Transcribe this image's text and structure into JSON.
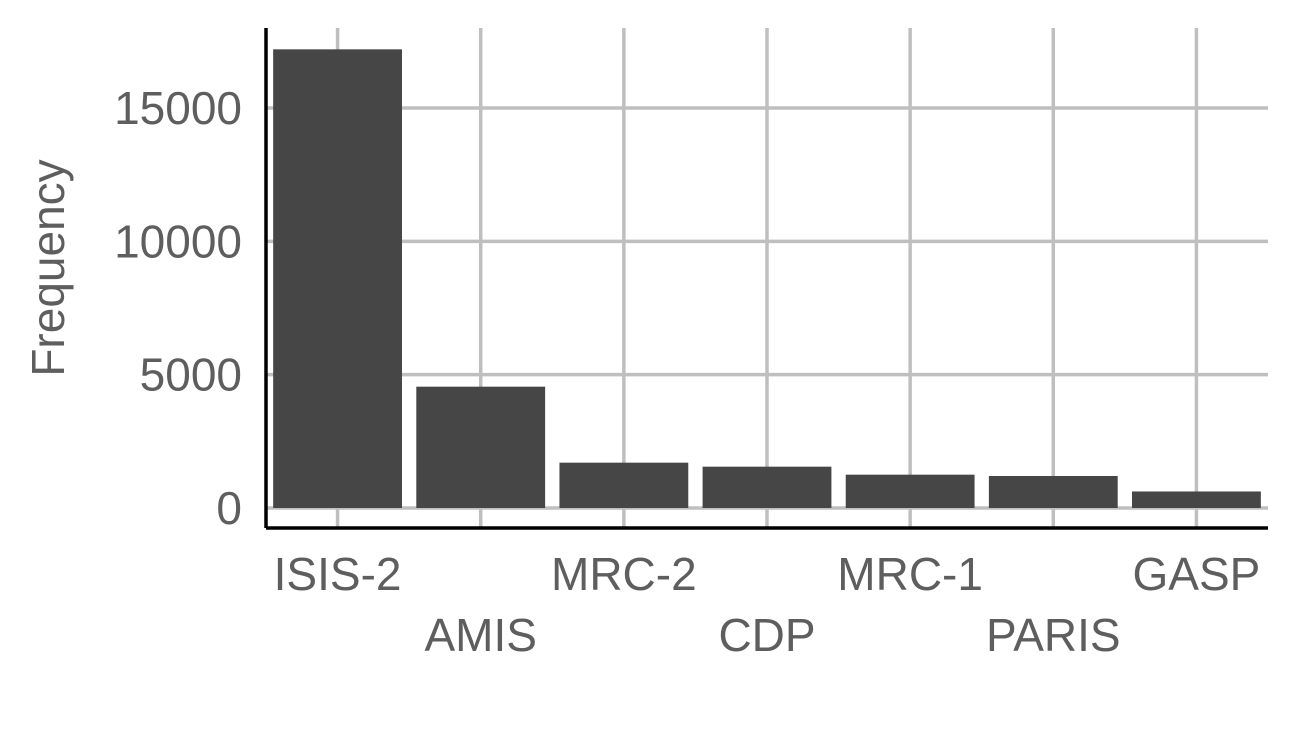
{
  "chart_data": {
    "type": "bar",
    "title": "",
    "xlabel": "",
    "ylabel": "Frequency",
    "categories": [
      "ISIS-2",
      "AMIS",
      "MRC-2",
      "CDP",
      "MRC-1",
      "PARIS",
      "GASP"
    ],
    "values": [
      17200,
      4550,
      1700,
      1550,
      1250,
      1200,
      620
    ],
    "ylim": [
      -750,
      18000
    ],
    "yticks": [
      0,
      5000,
      10000,
      15000
    ],
    "ytick_labels": [
      "0",
      "5000",
      "10000",
      "15000"
    ],
    "grid": true,
    "legend": "none",
    "bar_color": "#464646",
    "grid_color": "#bfbfbf"
  }
}
